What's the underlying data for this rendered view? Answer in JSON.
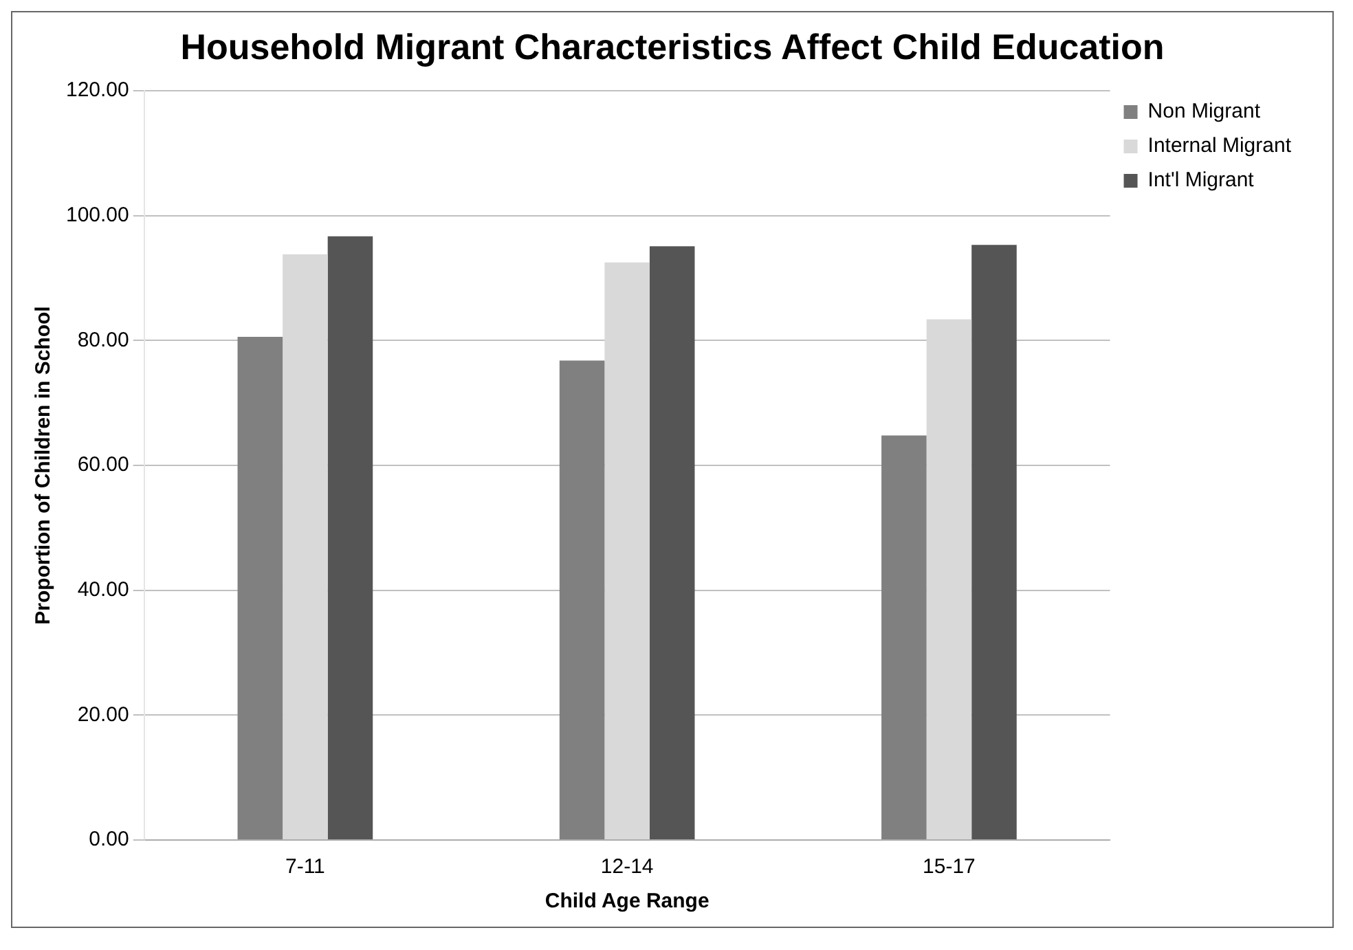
{
  "chart_data": {
    "type": "bar",
    "title": "Household Migrant Characteristics Affect Child Education",
    "xlabel": "Child Age Range",
    "ylabel": "Proportion of Children in School",
    "categories": [
      "7-11",
      "12-14",
      "15-17"
    ],
    "series": [
      {
        "name": "Non Migrant",
        "color": "#808080",
        "values": [
          80.6,
          76.8,
          64.8
        ]
      },
      {
        "name": "Internal Migrant",
        "color": "#d9d9d9",
        "values": [
          93.8,
          92.5,
          83.4
        ]
      },
      {
        "name": "Int'l Migrant",
        "color": "#555555",
        "values": [
          96.7,
          95.1,
          95.3
        ]
      }
    ],
    "ylim": [
      0,
      120
    ],
    "yticks": [
      {
        "value": 0,
        "label": "0.00"
      },
      {
        "value": 20,
        "label": "20.00"
      },
      {
        "value": 40,
        "label": "40.00"
      },
      {
        "value": 60,
        "label": "60.00"
      },
      {
        "value": 80,
        "label": "80.00"
      },
      {
        "value": 100,
        "label": "100.00"
      },
      {
        "value": 120,
        "label": "120.00"
      }
    ],
    "grid": "y",
    "legend": "top right"
  }
}
